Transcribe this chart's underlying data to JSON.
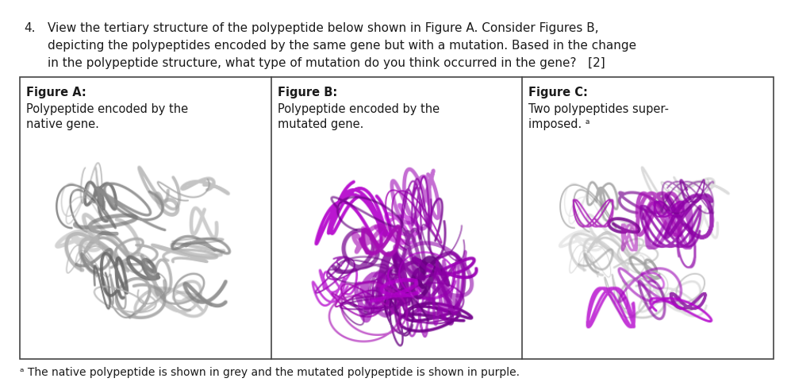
{
  "background_color": "#ffffff",
  "question_number": "4.",
  "question_text_line1": "View the tertiary structure of the polypeptide below shown in Figure A. Consider Figures B,",
  "question_text_line2": "depicting the polypeptides encoded by the same gene but with a mutation. Based in the change",
  "question_text_line3": "in the polypeptide structure, what type of mutation do you think occurred in the gene?   [2]",
  "fig_a_title": "Figure A:",
  "fig_a_desc1": "Polypeptide encoded by the",
  "fig_a_desc2": "native gene.",
  "fig_b_title": "Figure B:",
  "fig_b_desc1": "Polypeptide encoded by the",
  "fig_b_desc2": "mutated gene.",
  "fig_c_title": "Figure C:",
  "fig_c_desc1": "Two polypeptides super-",
  "fig_c_desc2": "imposed. ᵃ",
  "footnote": "ᵃ The native polypeptide is shown in grey and the mutated polypeptide is shown in purple.",
  "text_color": "#1a1a1a",
  "border_color": "#444444",
  "font_size_question": 11.0,
  "font_size_table": 10.5
}
